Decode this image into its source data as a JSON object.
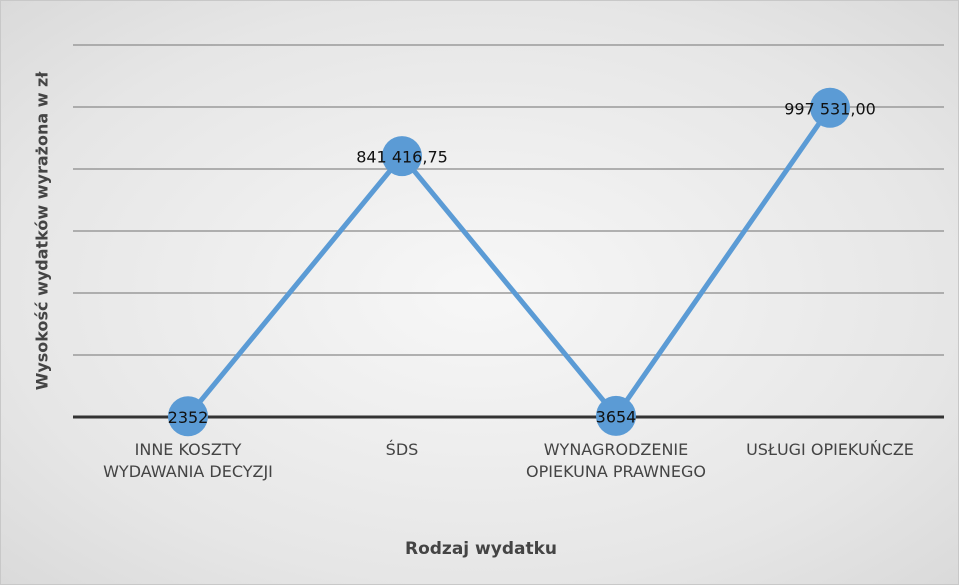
{
  "chart_data": {
    "type": "line",
    "categories": [
      "INNE KOSZTY WYDAWANIA DECYZJI",
      "ŚDS",
      "WYNAGRODZENIE OPIEKUNA PRAWNEGO",
      "USŁUGI OPIEKUŃCZE"
    ],
    "series": [
      {
        "name": "Wysokość wydatków",
        "color": "#5b9bd5",
        "values": [
          2352,
          841416.75,
          3654,
          997531
        ],
        "value_labels": [
          "2352",
          "841 416,75",
          "3654",
          "997 531,00"
        ]
      }
    ],
    "x_label": "Rodzaj wydatku",
    "y_label": "Wysokość wydatków wyrażona w zł",
    "ylim": [
      0,
      1200000
    ],
    "yticks": [
      0,
      200000,
      400000,
      600000,
      800000,
      1000000,
      1200000
    ],
    "grid": true
  }
}
